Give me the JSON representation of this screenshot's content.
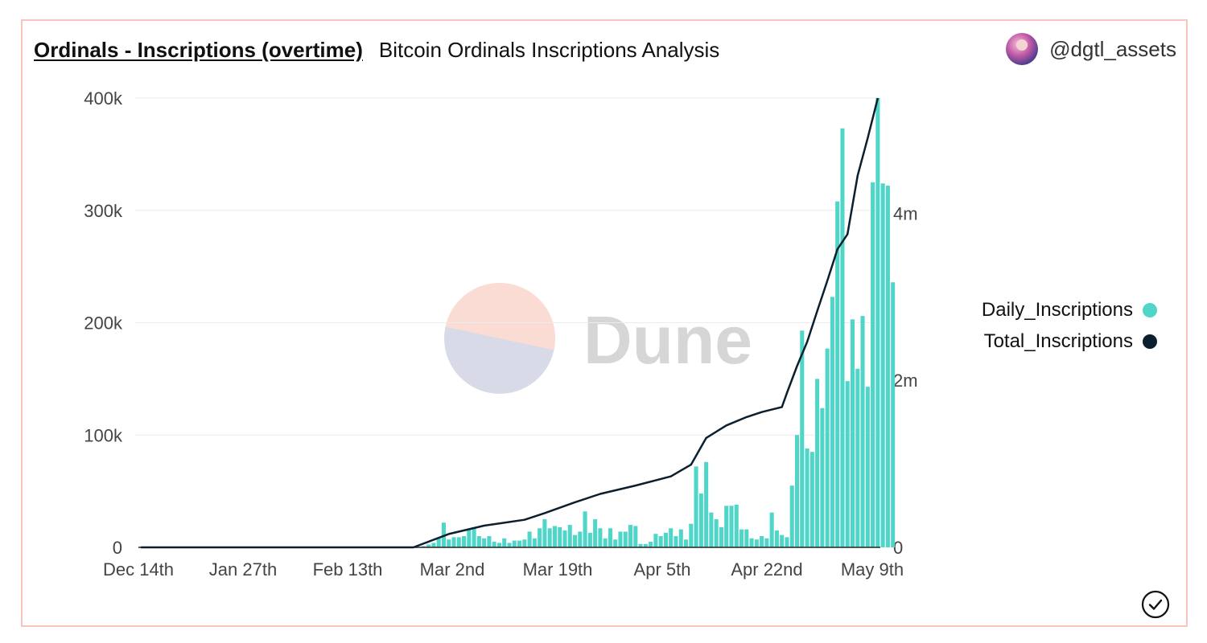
{
  "header": {
    "title": "Ordinals - Inscriptions (overtime)",
    "subtitle": "Bitcoin Ordinals Inscriptions Analysis",
    "username": "@dgtl_assets"
  },
  "watermark": "Dune",
  "colors": {
    "bar": "#4fd6c9",
    "line": "#0b1f2e",
    "border": "#f6c6bd",
    "grid": "#ececec",
    "watermark_top": "#fbdcd5",
    "watermark_bottom": "#d9dae8",
    "watermark_text": "#d6d6d6"
  },
  "icons": {
    "avatar": "user-avatar",
    "check": "check-circle-icon"
  },
  "chart_data": {
    "type": "bar+line",
    "x_ticks": [
      "Dec 14th",
      "Jan 27th",
      "Feb 13th",
      "Mar 2nd",
      "Mar 19th",
      "Apr 5th",
      "Apr 22nd",
      "May 9th"
    ],
    "y_left_ticks": [
      "400k",
      "300k",
      "200k",
      "100k",
      "0"
    ],
    "y_right_ticks": [
      "4m",
      "2m",
      "0"
    ],
    "ylim_left": [
      0,
      400000
    ],
    "ylim_right": [
      0,
      5380000
    ],
    "grid": true,
    "legend_position": "right",
    "series": [
      {
        "name": "Daily_Inscriptions",
        "axis": "left",
        "type": "bar",
        "x_start": "2022-12-14",
        "values": [
          0,
          0,
          0,
          0,
          0,
          0,
          0,
          0,
          0,
          0,
          0,
          0,
          0,
          0,
          0,
          0,
          0,
          0,
          0,
          0,
          0,
          0,
          0,
          0,
          0,
          0,
          0,
          0,
          0,
          0,
          0,
          0,
          0,
          0,
          0,
          0,
          0,
          0,
          0,
          0,
          0,
          0,
          0,
          0,
          0,
          0,
          0,
          0,
          0,
          0,
          0,
          0,
          0,
          0,
          0,
          0,
          1000,
          2500,
          4000,
          8000,
          22000,
          7000,
          9000,
          9000,
          10000,
          16000,
          18000,
          10000,
          8000,
          10000,
          5000,
          4000,
          8000,
          4000,
          6000,
          6000,
          7000,
          14000,
          8000,
          17000,
          25000,
          17000,
          19000,
          18000,
          15000,
          20000,
          11000,
          14000,
          32000,
          13000,
          25000,
          17000,
          8000,
          17000,
          7000,
          14000,
          14000,
          20000,
          19000,
          3000,
          3000,
          5000,
          12000,
          10000,
          13000,
          17000,
          10000,
          16000,
          7000,
          21000,
          72000,
          48000,
          76000,
          31000,
          25000,
          18000,
          37000,
          37000,
          38000,
          16000,
          16000,
          8000,
          7000,
          10000,
          8000,
          31000,
          15000,
          11000,
          9000,
          55000,
          100000,
          193000,
          88000,
          85000,
          150000,
          124000,
          177000,
          223000,
          308000,
          373000,
          148000,
          203000,
          159000,
          206000,
          143000,
          325000,
          400000,
          324000,
          322000,
          236000
        ],
        "values_unit_note": "approximate daily counts"
      },
      {
        "name": "Total_Inscriptions",
        "axis": "right",
        "type": "line",
        "points": [
          [
            "2022-12-14",
            0
          ],
          [
            "2023-01-27",
            0
          ],
          [
            "2023-02-06",
            0
          ],
          [
            "2023-02-13",
            160000
          ],
          [
            "2023-02-20",
            260000
          ],
          [
            "2023-02-28",
            330000
          ],
          [
            "2023-03-04",
            410000
          ],
          [
            "2023-03-10",
            540000
          ],
          [
            "2023-03-15",
            640000
          ],
          [
            "2023-03-22",
            740000
          ],
          [
            "2023-03-29",
            850000
          ],
          [
            "2023-04-02",
            990000
          ],
          [
            "2023-04-05",
            1310000
          ],
          [
            "2023-04-09",
            1460000
          ],
          [
            "2023-04-13",
            1560000
          ],
          [
            "2023-04-16",
            1620000
          ],
          [
            "2023-04-20",
            1680000
          ],
          [
            "2023-04-21",
            1850000
          ],
          [
            "2023-04-23",
            2170000
          ],
          [
            "2023-04-25",
            2460000
          ],
          [
            "2023-04-27",
            2830000
          ],
          [
            "2023-04-29",
            3190000
          ],
          [
            "2023-05-01",
            3570000
          ],
          [
            "2023-05-03",
            3750000
          ],
          [
            "2023-05-05",
            4450000
          ],
          [
            "2023-05-07",
            4900000
          ],
          [
            "2023-05-09",
            5380000
          ]
        ]
      }
    ]
  }
}
